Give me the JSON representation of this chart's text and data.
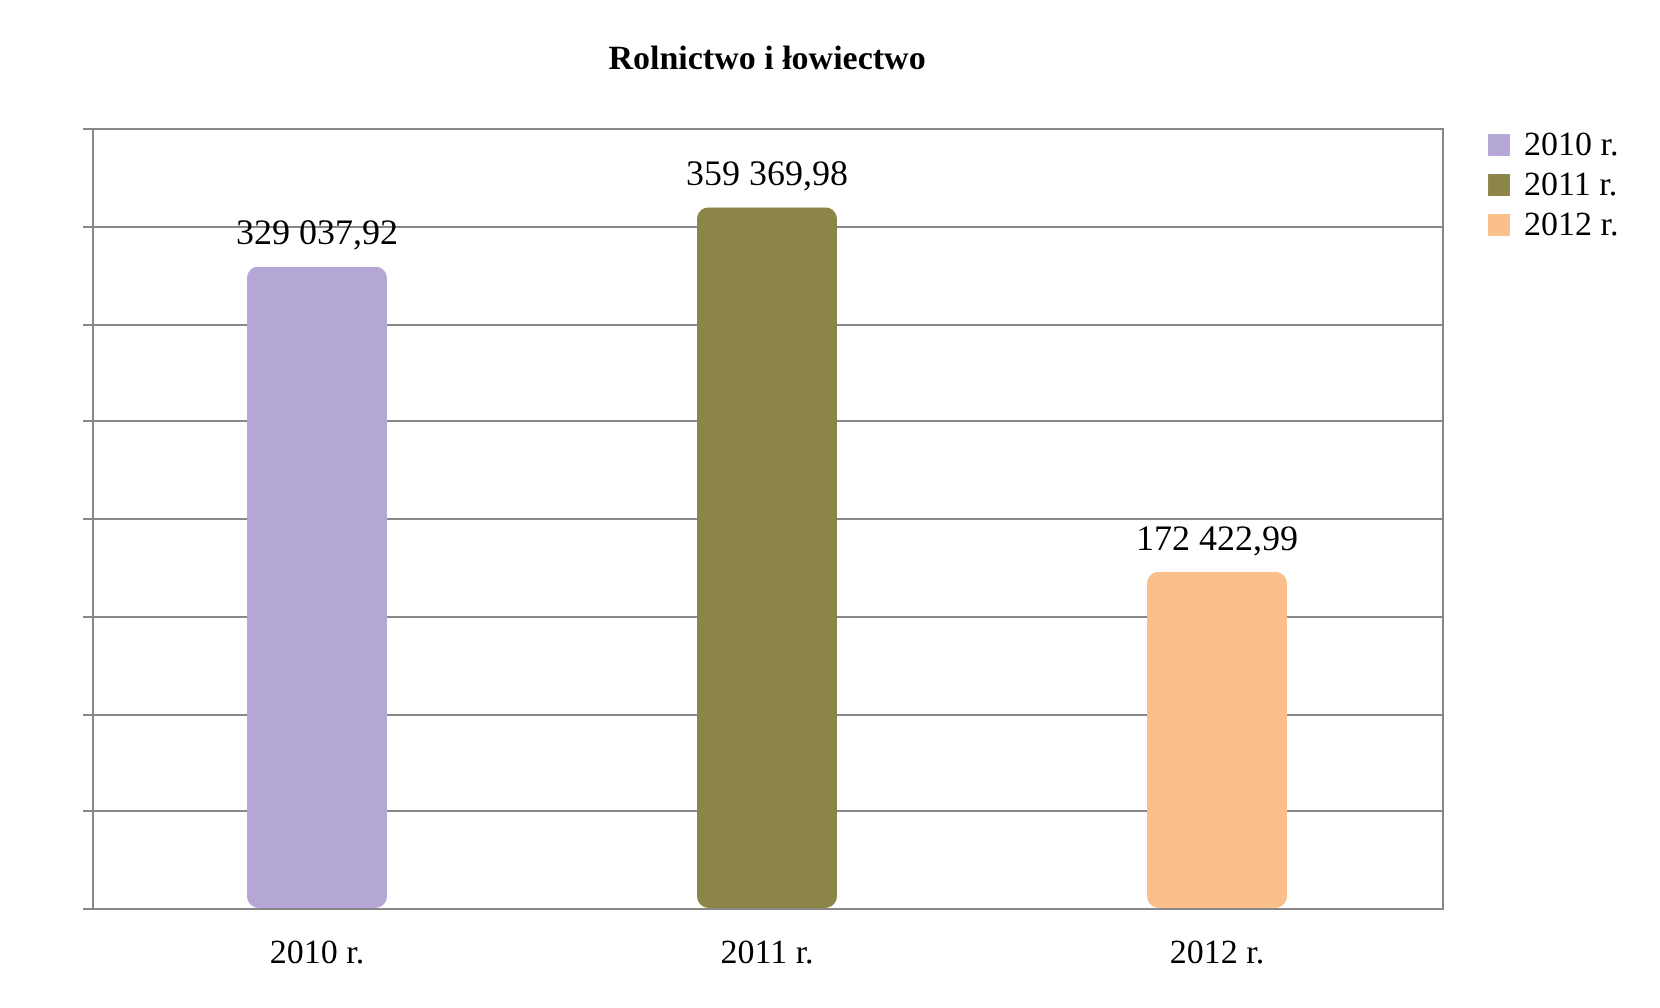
{
  "chart_data": {
    "type": "bar",
    "title": "Rolnictwo i łowiectwo",
    "categories": [
      "2010 r.",
      "2011 r.",
      "2012 r."
    ],
    "series": [
      {
        "name": "2010 r.",
        "color": "#b4a7d6",
        "values": [
          329037.92,
          null,
          null
        ],
        "value_labels": [
          "329 037,92",
          null,
          null
        ]
      },
      {
        "name": "2011 r.",
        "color": "#8b8547",
        "values": [
          null,
          359369.98,
          null
        ],
        "value_labels": [
          null,
          "359 369,98",
          null
        ]
      },
      {
        "name": "2012 r.",
        "color": "#fbbf8c",
        "values": [
          null,
          null,
          172422.99
        ],
        "value_labels": [
          null,
          null,
          "172 422,99"
        ]
      }
    ],
    "ylim": [
      0,
      400000
    ],
    "yticks": [
      {
        "value": 0,
        "label": null
      },
      {
        "value": 50000,
        "label": null
      },
      {
        "value": 100000,
        "label": null
      },
      {
        "value": 150000,
        "label": null
      },
      {
        "value": 200000,
        "label": null
      },
      {
        "value": 250000,
        "label": null
      },
      {
        "value": 300000,
        "label": null
      },
      {
        "value": 350000,
        "label": null
      },
      {
        "value": 400000,
        "label": null
      }
    ],
    "tick_labels": "x",
    "grid": "y",
    "legend": "right"
  }
}
